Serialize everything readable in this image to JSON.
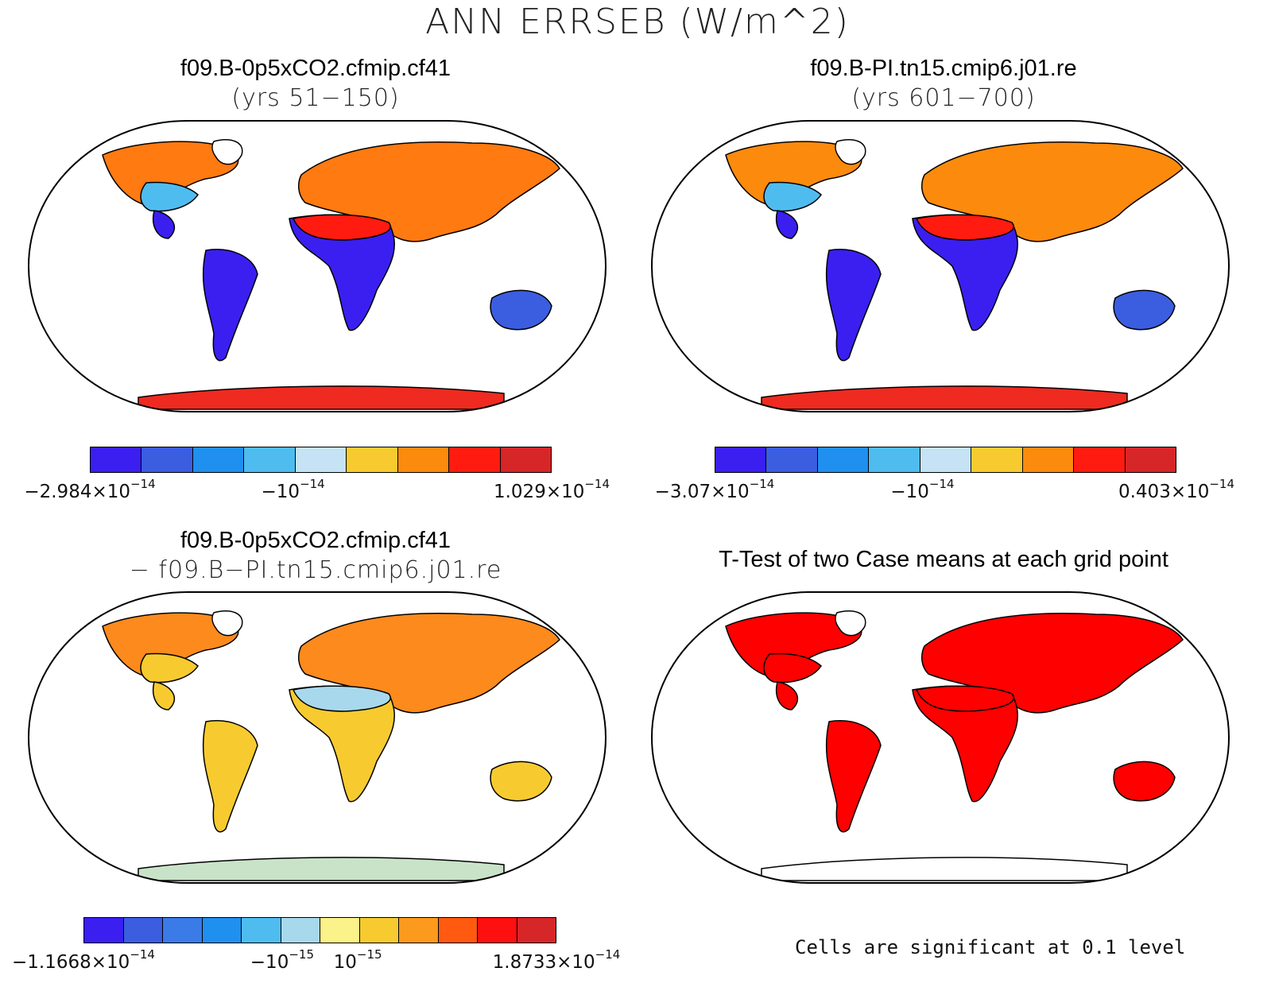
{
  "title": "ANN ERRSEB (W/m^2)",
  "colors": {
    "map_border": "#000000",
    "ttest_fill": "#ff0000"
  },
  "panels": [
    {
      "id": "case1",
      "title": "f09.B-0p5xCO2.cfmip.cf41",
      "subtitle": "(yrs 51−150)",
      "palette": [
        "#3a1ff0",
        "#3b5de0",
        "#1f8ff0",
        "#4fbcf0",
        "#c5e3f5",
        "#f7cb2f",
        "#fc8a0d",
        "#ff1b10",
        "#d62628"
      ],
      "land_colors": {
        "north": "#ff7a10",
        "mid": "#4fbcf0",
        "tropics": "#3a1ff0",
        "desert": "#ff1b10",
        "antarctica": "#ef2a20",
        "australia": "#3b5de0"
      },
      "ticks": [
        {
          "mant": "−2.984×10",
          "exp": "−14",
          "pos": 0
        },
        {
          "mant": "−10",
          "exp": "−14",
          "pos": 0.44
        },
        {
          "mant": "1.029×10",
          "exp": "−14",
          "pos": 1
        }
      ]
    },
    {
      "id": "case2",
      "title": "f09.B-PI.tn15.cmip6.j01.re",
      "subtitle": "(yrs 601−700)",
      "palette": [
        "#3a1ff0",
        "#3b5de0",
        "#1f8ff0",
        "#4fbcf0",
        "#c5e3f5",
        "#f7cb2f",
        "#fc8a0d",
        "#ff1b10",
        "#d62628"
      ],
      "land_colors": {
        "north": "#fc8a0d",
        "mid": "#4fbcf0",
        "tropics": "#3a1ff0",
        "desert": "#ff1b10",
        "antarctica": "#ef2a20",
        "australia": "#3b5de0"
      },
      "ticks": [
        {
          "mant": "−3.07×10",
          "exp": "−14",
          "pos": 0
        },
        {
          "mant": "−10",
          "exp": "−14",
          "pos": 0.45
        },
        {
          "mant": "0.403×10",
          "exp": "−14",
          "pos": 1
        }
      ]
    },
    {
      "id": "diff",
      "title": "f09.B-0p5xCO2.cfmip.cf41",
      "subtitle": "− f09.B−PI.tn15.cmip6.j01.re",
      "palette": [
        "#3a1ff0",
        "#3b5de0",
        "#3a7be8",
        "#1f8ff0",
        "#4fbcf0",
        "#a8d8ec",
        "#fbf28a",
        "#f7cb2f",
        "#fc9a1d",
        "#ff5a10",
        "#ff1010",
        "#d62628"
      ],
      "land_colors": {
        "north": "#fc8a1d",
        "mid": "#f7cb2f",
        "tropics": "#f7cb2f",
        "desert": "#a8d8ec",
        "antarctica": "#c9e3c8",
        "australia": "#f7cb2f"
      },
      "ticks": [
        {
          "mant": "−1.1668×10",
          "exp": "−14",
          "pos": 0
        },
        {
          "mant": "−10",
          "exp": "−15",
          "pos": 0.42
        },
        {
          "mant": "10",
          "exp": "−15",
          "pos": 0.58
        },
        {
          "mant": "1.8733×10",
          "exp": "−14",
          "pos": 1
        }
      ]
    },
    {
      "id": "ttest",
      "title": "T-Test of two Case means at each grid point",
      "subtitle": "",
      "note": "Cells are significant at 0.1 level"
    }
  ]
}
